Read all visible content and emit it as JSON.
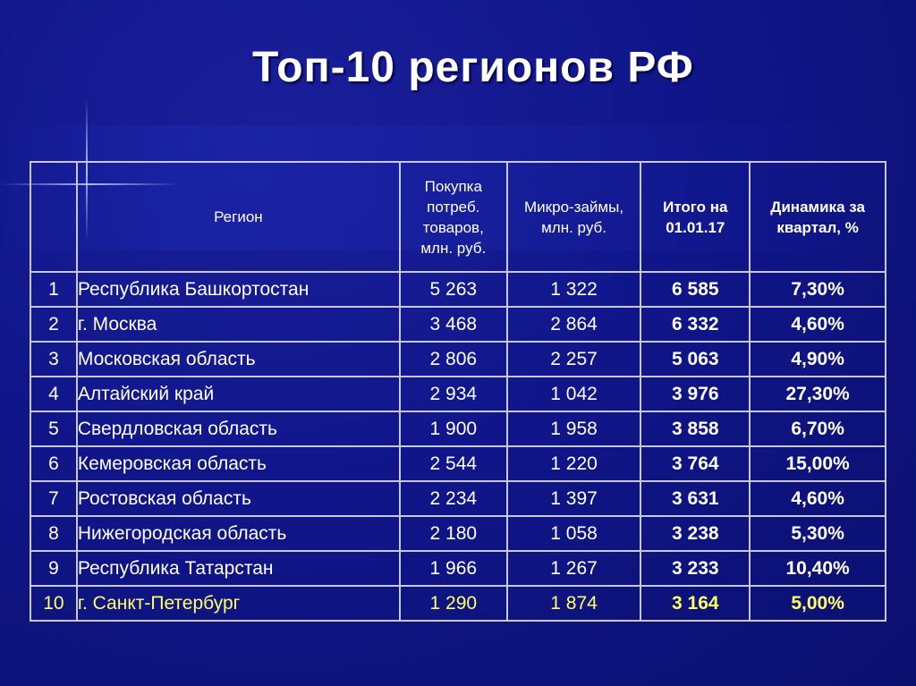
{
  "title": "Топ-10 регионов РФ",
  "colors": {
    "background": "#10168a",
    "text": "#ffffff",
    "highlight_text": "#ffff66",
    "border": "#c8c8d8"
  },
  "table": {
    "headers": {
      "number": "",
      "region": "Регион",
      "purchase": "Покупка потреб. товаров, млн. руб.",
      "microloans": "Микро-займы, млн. руб.",
      "total": "Итого на 01.01.17",
      "dynamics": "Динамика за квартал, %"
    },
    "rows": [
      {
        "n": "1",
        "region": "Республика Башкортостан",
        "purchase": "5 263",
        "microloans": "1 322",
        "total": "6 585",
        "dynamics": "7,30%"
      },
      {
        "n": "2",
        "region": "г. Москва",
        "purchase": "3 468",
        "microloans": "2 864",
        "total": "6 332",
        "dynamics": "4,60%"
      },
      {
        "n": "3",
        "region": "Московская область",
        "purchase": "2 806",
        "microloans": "2 257",
        "total": "5 063",
        "dynamics": "4,90%"
      },
      {
        "n": "4",
        "region": "Алтайский край",
        "purchase": "2 934",
        "microloans": "1 042",
        "total": "3 976",
        "dynamics": "27,30%"
      },
      {
        "n": "5",
        "region": "Свердловская область",
        "purchase": "1 900",
        "microloans": "1 958",
        "total": "3 858",
        "dynamics": "6,70%"
      },
      {
        "n": "6",
        "region": "Кемеровская область",
        "purchase": "2 544",
        "microloans": "1 220",
        "total": "3 764",
        "dynamics": "15,00%"
      },
      {
        "n": "7",
        "region": "Ростовская область",
        "purchase": "2 234",
        "microloans": "1 397",
        "total": "3 631",
        "dynamics": "4,60%"
      },
      {
        "n": "8",
        "region": "Нижегородская область",
        "purchase": "2 180",
        "microloans": "1 058",
        "total": "3 238",
        "dynamics": "5,30%"
      },
      {
        "n": "9",
        "region": "Республика Татарстан",
        "purchase": "1 966",
        "microloans": "1 267",
        "total": "3 233",
        "dynamics": "10,40%"
      },
      {
        "n": "10",
        "region": "г. Санкт-Петербург",
        "purchase": "1 290",
        "microloans": "1 874",
        "total": "3 164",
        "dynamics": "5,00%"
      }
    ]
  }
}
